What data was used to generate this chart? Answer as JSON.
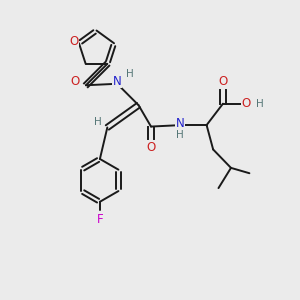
{
  "background_color": "#ebebeb",
  "bond_color": "#1a1a1a",
  "N_color": "#2222cc",
  "O_color": "#cc2222",
  "F_color": "#cc00cc",
  "H_color": "#557777",
  "figsize": [
    3.0,
    3.0
  ],
  "dpi": 100,
  "xlim": [
    0,
    10
  ],
  "ylim": [
    0,
    10
  ]
}
